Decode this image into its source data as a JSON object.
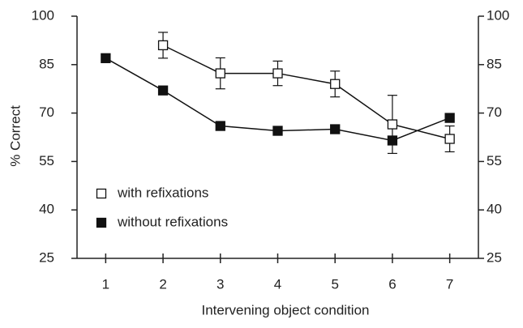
{
  "chart_data": {
    "type": "line",
    "x_label": "Intervening object condition",
    "y_label": "% Correct",
    "x": [
      1,
      2,
      3,
      4,
      5,
      6,
      7
    ],
    "xlim": [
      0.5,
      7.5
    ],
    "xticks": [
      1,
      2,
      3,
      4,
      5,
      6,
      7
    ],
    "ylim": [
      25,
      100
    ],
    "yticks": [
      25,
      40,
      55,
      70,
      85,
      100
    ],
    "y2lim": [
      25,
      100
    ],
    "y2ticks": [
      25,
      40,
      55,
      70,
      85,
      100
    ],
    "grid": false,
    "legend": "lower left",
    "series": [
      {
        "name": "with refixations",
        "color": "#ffffff",
        "marker": "open-square",
        "values": [
          null,
          91,
          82.3,
          82.3,
          79,
          66.5,
          62
        ],
        "errors": [
          null,
          4,
          4.8,
          3.8,
          4,
          9,
          4
        ]
      },
      {
        "name": "without refixations",
        "color": "#111111",
        "marker": "filled-square",
        "values": [
          87,
          77,
          66,
          64.5,
          65,
          61.5,
          68.5
        ]
      }
    ]
  }
}
